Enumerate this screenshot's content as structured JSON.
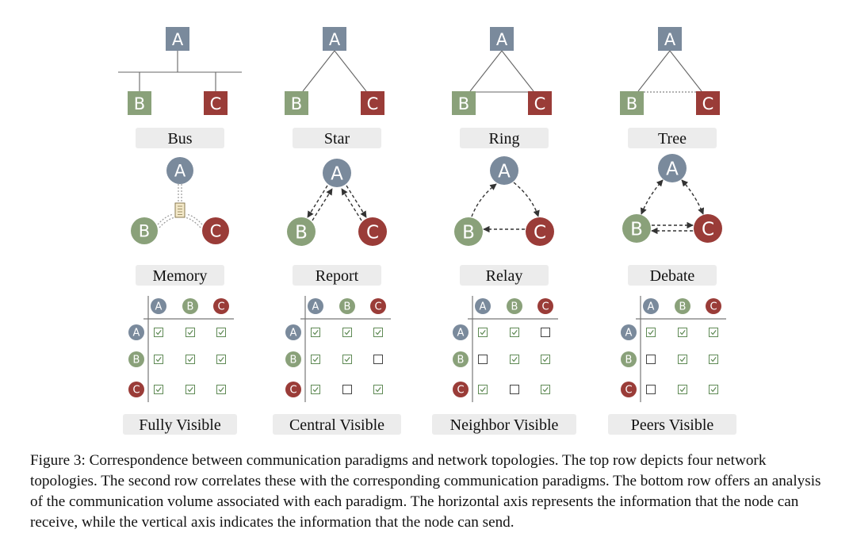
{
  "colors": {
    "A": "#7a8a9c",
    "B": "#8aa17a",
    "C": "#9a3c38",
    "label_bg": "#ececec",
    "check": "#5f8a55",
    "line": "#555555"
  },
  "nodes": {
    "A": "A",
    "B": "B",
    "C": "C"
  },
  "topologies": [
    {
      "key": "bus",
      "label": "Bus"
    },
    {
      "key": "star",
      "label": "Star"
    },
    {
      "key": "ring",
      "label": "Ring"
    },
    {
      "key": "tree",
      "label": "Tree"
    }
  ],
  "paradigms": [
    {
      "key": "memory",
      "label": "Memory"
    },
    {
      "key": "report",
      "label": "Report"
    },
    {
      "key": "relay",
      "label": "Relay"
    },
    {
      "key": "debate",
      "label": "Debate"
    }
  ],
  "visibility": [
    {
      "label": "Fully Visible",
      "matrix": [
        [
          true,
          true,
          true
        ],
        [
          true,
          true,
          true
        ],
        [
          true,
          true,
          true
        ]
      ]
    },
    {
      "label": "Central Visible",
      "matrix": [
        [
          true,
          true,
          true
        ],
        [
          true,
          true,
          false
        ],
        [
          true,
          false,
          true
        ]
      ]
    },
    {
      "label": "Neighbor Visible",
      "matrix": [
        [
          true,
          true,
          false
        ],
        [
          false,
          true,
          true
        ],
        [
          true,
          false,
          true
        ]
      ]
    },
    {
      "label": "Peers Visible",
      "matrix": [
        [
          true,
          true,
          true
        ],
        [
          false,
          true,
          true
        ],
        [
          false,
          true,
          true
        ]
      ]
    }
  ],
  "caption": "Figure 3: Correspondence between communication paradigms and network topologies. The top row depicts four network topologies. The second row correlates these with the corresponding communication paradigms. The bottom row offers an analysis of the communication volume associated with each paradigm. The horizontal axis represents the information that the node can receive, while the vertical axis indicates the information that the node can send."
}
